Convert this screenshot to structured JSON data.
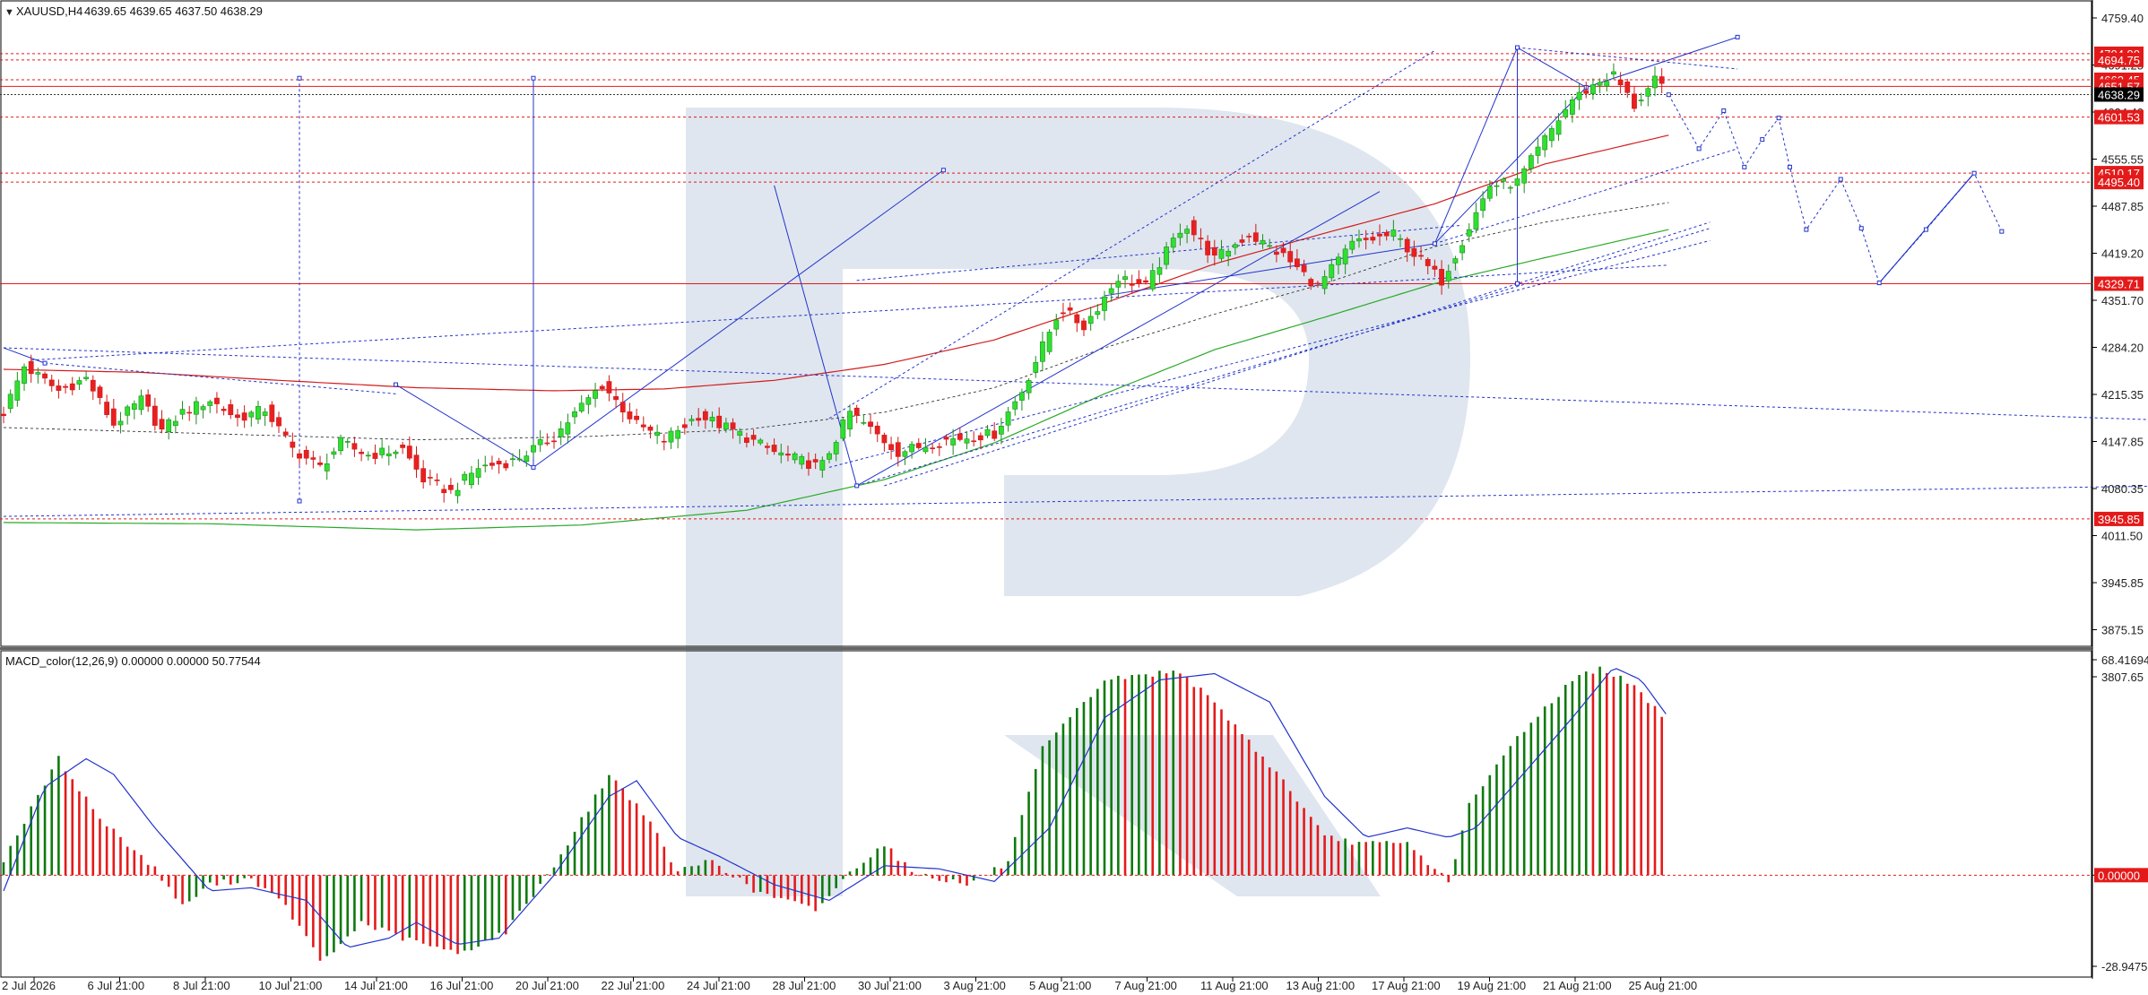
{
  "window": {
    "symbol_label": "XAUUSD,H4",
    "ohlc_label": "4639.65 4639.65 4637.50 4638.29"
  },
  "macd": {
    "label": "MACD_color(12,26,9) 0.00000 0.00000 50.77544"
  },
  "colors": {
    "bull": "#0e7a0e",
    "bear": "#e41a1a",
    "signal": "#2233cc",
    "level": "#e41a1a",
    "ma_slow": "#29a829",
    "ma_fast": "#d21c1c",
    "watermark": "#d9e2ec"
  },
  "chart_data": [
    {
      "type": "candlestick",
      "title": "XAUUSD,H4",
      "timeframe": "H4",
      "ylim": [
        3760,
        4775
      ],
      "y_ticks": [
        "4759.40",
        "4691.25",
        "4624.40",
        "4555.55",
        "4487.85",
        "4419.20",
        "4351.70",
        "4284.20",
        "4215.35",
        "4147.85",
        "4080.35",
        "4011.50",
        "3945.85",
        "3875.15",
        "3807.65"
      ],
      "x_ticks": [
        "2 Jul 2026",
        "6 Jul 21:00",
        "8 Jul 21:00",
        "10 Jul 21:00",
        "14 Jul 21:00",
        "16 Jul 21:00",
        "20 Jul 21:00",
        "22 Jul 21:00",
        "24 Jul 21:00",
        "28 Jul 21:00",
        "30 Jul 21:00",
        "3 Aug 21:00",
        "5 Aug 21:00",
        "7 Aug 21:00",
        "11 Aug 21:00",
        "13 Aug 21:00",
        "17 Aug 21:00",
        "19 Aug 21:00",
        "21 Aug 21:00",
        "25 Aug 21:00"
      ],
      "price_levels": [
        {
          "label": "4704.90",
          "value": 4704.9,
          "style": "dashed"
        },
        {
          "label": "4694.75",
          "value": 4694.75,
          "style": "dashed"
        },
        {
          "label": "4662.45",
          "value": 4662.45,
          "style": "dashed"
        },
        {
          "label": "4651.57",
          "value": 4651.57,
          "style": "solid"
        },
        {
          "label": "4638.29",
          "value": 4638.29,
          "style": "current"
        },
        {
          "label": "4601.53",
          "value": 4601.53,
          "style": "dashed"
        },
        {
          "label": "4510.17",
          "value": 4510.17,
          "style": "dashed"
        },
        {
          "label": "4495.40",
          "value": 4495.4,
          "style": "dashed"
        },
        {
          "label": "4329.71",
          "value": 4329.71,
          "style": "solid"
        },
        {
          "label": "3945.85",
          "value": 3945.85,
          "style": "dashed"
        }
      ],
      "price_key_points": [
        [
          0,
          4120
        ],
        [
          15,
          4195
        ],
        [
          40,
          4155
        ],
        [
          60,
          4175
        ],
        [
          80,
          4100
        ],
        [
          100,
          4140
        ],
        [
          115,
          4090
        ],
        [
          130,
          4120
        ],
        [
          150,
          4140
        ],
        [
          170,
          4110
        ],
        [
          190,
          4125
        ],
        [
          210,
          4060
        ],
        [
          230,
          4030
        ],
        [
          245,
          4070
        ],
        [
          265,
          4050
        ],
        [
          290,
          4060
        ],
        [
          305,
          4010
        ],
        [
          325,
          3990
        ],
        [
          345,
          4030
        ],
        [
          370,
          4040
        ],
        [
          400,
          4080
        ],
        [
          420,
          4130
        ],
        [
          435,
          4165
        ],
        [
          460,
          4100
        ],
        [
          480,
          4075
        ],
        [
          505,
          4115
        ],
        [
          530,
          4090
        ],
        [
          560,
          4055
        ],
        [
          594,
          4030
        ],
        [
          615,
          4120
        ],
        [
          650,
          4055
        ],
        [
          685,
          4075
        ],
        [
          720,
          4085
        ],
        [
          740,
          4155
        ],
        [
          768,
          4290
        ],
        [
          785,
          4260
        ],
        [
          810,
          4340
        ],
        [
          830,
          4325
        ],
        [
          858,
          4430
        ],
        [
          880,
          4370
        ],
        [
          905,
          4410
        ],
        [
          930,
          4375
        ],
        [
          955,
          4325
        ],
        [
          980,
          4395
        ],
        [
          1010,
          4410
        ],
        [
          1045,
          4335
        ],
        [
          1060,
          4400
        ],
        [
          1080,
          4490
        ],
        [
          1100,
          4495
        ],
        [
          1120,
          4565
        ],
        [
          1140,
          4630
        ],
        [
          1160,
          4660
        ],
        [
          1170,
          4670
        ],
        [
          1185,
          4620
        ],
        [
          1200,
          4660
        ],
        [
          1210,
          4638
        ]
      ],
      "series": [
        {
          "name": "",
          "kind": "moving-average",
          "color": "#d21c1c",
          "points": [
            [
              0,
              4190
            ],
            [
              100,
              4185
            ],
            [
              200,
              4172
            ],
            [
              300,
              4160
            ],
            [
              400,
              4155
            ],
            [
              480,
              4158
            ],
            [
              560,
              4172
            ],
            [
              640,
              4198
            ],
            [
              720,
              4238
            ],
            [
              800,
              4298
            ],
            [
              880,
              4362
            ],
            [
              960,
              4412
            ],
            [
              1040,
              4460
            ],
            [
              1120,
              4525
            ],
            [
              1210,
              4572
            ]
          ]
        },
        {
          "name": "",
          "kind": "moving-average",
          "color": "#29a829",
          "points": [
            [
              0,
              3940
            ],
            [
              150,
              3938
            ],
            [
              300,
              3928
            ],
            [
              420,
              3936
            ],
            [
              540,
              3960
            ],
            [
              640,
              4010
            ],
            [
              720,
              4070
            ],
            [
              800,
              4150
            ],
            [
              880,
              4222
            ],
            [
              960,
              4275
            ],
            [
              1040,
              4330
            ],
            [
              1120,
              4372
            ],
            [
              1210,
              4418
            ]
          ]
        },
        {
          "name": "",
          "kind": "moving-average",
          "color": "#333333",
          "points": [
            [
              0,
              4095
            ],
            [
              150,
              4085
            ],
            [
              300,
              4075
            ],
            [
              420,
              4080
            ],
            [
              540,
              4092
            ],
            [
              640,
              4120
            ],
            [
              720,
              4160
            ],
            [
              800,
              4225
            ],
            [
              880,
              4280
            ],
            [
              960,
              4330
            ],
            [
              1040,
              4390
            ],
            [
              1120,
              4430
            ],
            [
              1210,
              4462
            ]
          ]
        }
      ],
      "forecast_points": [
        [
          1210,
          4638
        ],
        [
          1232,
          4550
        ],
        [
          1250,
          4612
        ],
        [
          1265,
          4520
        ],
        [
          1278,
          4565
        ],
        [
          1290,
          4600
        ],
        [
          1298,
          4520
        ],
        [
          1310,
          4418
        ],
        [
          1335,
          4500
        ],
        [
          1350,
          4420
        ],
        [
          1363,
          4331
        ],
        [
          1397,
          4418
        ],
        [
          1432,
          4510
        ],
        [
          1452,
          4415
        ]
      ]
    },
    {
      "type": "bar",
      "title": "MACD_color(12,26,9)",
      "ylim": [
        -28.94751,
        68.41694
      ],
      "y_ticks": [
        "68.41694",
        "0.00000",
        "-28.94751"
      ],
      "histogram_key_points": [
        [
          0,
          5
        ],
        [
          40,
          37
        ],
        [
          70,
          18
        ],
        [
          110,
          2
        ],
        [
          130,
          -10
        ],
        [
          150,
          -3
        ],
        [
          180,
          -1
        ],
        [
          205,
          -10
        ],
        [
          232,
          -28
        ],
        [
          260,
          -15
        ],
        [
          290,
          -20
        ],
        [
          330,
          -25
        ],
        [
          365,
          -18
        ],
        [
          400,
          3
        ],
        [
          440,
          32
        ],
        [
          465,
          20
        ],
        [
          490,
          1
        ],
        [
          515,
          5
        ],
        [
          545,
          -5
        ],
        [
          590,
          -11
        ],
        [
          620,
          3
        ],
        [
          640,
          10
        ],
        [
          660,
          1
        ],
        [
          700,
          -3
        ],
        [
          730,
          4
        ],
        [
          755,
          40
        ],
        [
          800,
          62
        ],
        [
          855,
          65
        ],
        [
          890,
          50
        ],
        [
          930,
          30
        ],
        [
          960,
          12
        ],
        [
          990,
          10
        ],
        [
          1020,
          10
        ],
        [
          1050,
          -2
        ],
        [
          1065,
          22
        ],
        [
          1100,
          44
        ],
        [
          1140,
          62
        ],
        [
          1160,
          66
        ],
        [
          1185,
          60
        ],
        [
          1210,
          48
        ]
      ],
      "signal_key_points": [
        [
          0,
          -5
        ],
        [
          30,
          28
        ],
        [
          60,
          37
        ],
        [
          80,
          32
        ],
        [
          110,
          15
        ],
        [
          150,
          -5
        ],
        [
          180,
          -4
        ],
        [
          220,
          -8
        ],
        [
          250,
          -23
        ],
        [
          280,
          -20
        ],
        [
          300,
          -15
        ],
        [
          330,
          -22
        ],
        [
          360,
          -20
        ],
        [
          400,
          0
        ],
        [
          440,
          25
        ],
        [
          460,
          30
        ],
        [
          490,
          12
        ],
        [
          520,
          6
        ],
        [
          560,
          -3
        ],
        [
          600,
          -8
        ],
        [
          640,
          3
        ],
        [
          680,
          2
        ],
        [
          720,
          -2
        ],
        [
          760,
          15
        ],
        [
          800,
          50
        ],
        [
          840,
          62
        ],
        [
          880,
          64
        ],
        [
          920,
          55
        ],
        [
          960,
          25
        ],
        [
          990,
          12
        ],
        [
          1020,
          15
        ],
        [
          1050,
          12
        ],
        [
          1070,
          15
        ],
        [
          1100,
          30
        ],
        [
          1140,
          50
        ],
        [
          1170,
          66
        ],
        [
          1190,
          62
        ],
        [
          1210,
          50
        ]
      ]
    }
  ]
}
